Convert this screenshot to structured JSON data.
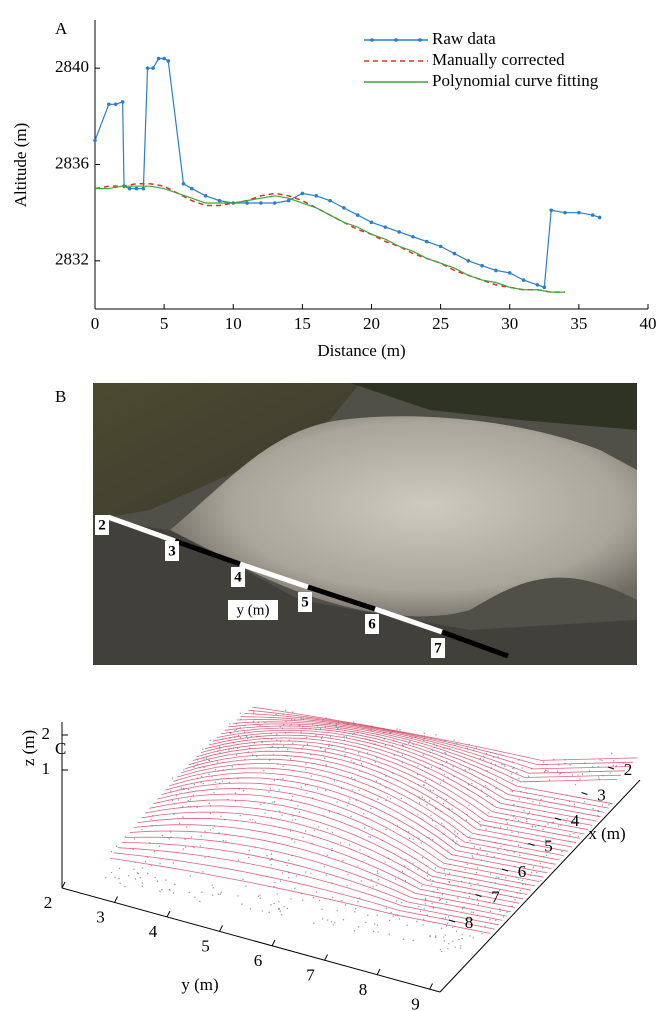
{
  "chart_data": {
    "type": "line",
    "panel_label": "A",
    "x_label": "Distance (m)",
    "y_label": "Altitude (m)",
    "xlim": [
      0,
      40
    ],
    "xticks": [
      0,
      5,
      10,
      15,
      20,
      25,
      30,
      35,
      40
    ],
    "ylim": [
      2830,
      2842
    ],
    "yticks": [
      2832,
      2836,
      2840
    ],
    "legend": "upper right",
    "series": [
      {
        "name": "Raw data",
        "color": "#2a7fc9",
        "line_style": "solid",
        "marker": "dot",
        "x": [
          0,
          1,
          1.5,
          2,
          2.1,
          2.5,
          3,
          3.5,
          3.8,
          4.2,
          4.6,
          5,
          5.3,
          6.4,
          7,
          8,
          9,
          10,
          11,
          12,
          13,
          14,
          15,
          16,
          17,
          18,
          19,
          20,
          21,
          22,
          23,
          24,
          25,
          26,
          27,
          28,
          29,
          30,
          31,
          32,
          32.5,
          33,
          34,
          35,
          36,
          36.5
        ],
        "values": [
          2837,
          2838.5,
          2838.5,
          2838.6,
          2835.1,
          2835.0,
          2835.0,
          2835.0,
          2840.0,
          2840.0,
          2840.4,
          2840.4,
          2840.3,
          2835.2,
          2835.0,
          2834.7,
          2834.5,
          2834.4,
          2834.4,
          2834.4,
          2834.4,
          2834.5,
          2834.8,
          2834.7,
          2834.5,
          2834.2,
          2833.9,
          2833.6,
          2833.4,
          2833.2,
          2833.0,
          2832.8,
          2832.6,
          2832.3,
          2832.0,
          2831.8,
          2831.6,
          2831.5,
          2831.2,
          2831.0,
          2830.9,
          2834.1,
          2834.0,
          2834.0,
          2833.9,
          2833.8
        ]
      },
      {
        "name": "Manually corrected",
        "color": "#e0301e",
        "line_style": "dashed",
        "marker": "none",
        "x": [
          0,
          1,
          2,
          3,
          4,
          5,
          6,
          7,
          8,
          9,
          10,
          11,
          12,
          13,
          14,
          15,
          16,
          17,
          18,
          19,
          20,
          21,
          22,
          23,
          24,
          25,
          26,
          27,
          28,
          29,
          30,
          31,
          32,
          33,
          34
        ],
        "values": [
          2835.0,
          2835.1,
          2835.1,
          2835.2,
          2835.2,
          2835.1,
          2834.8,
          2834.5,
          2834.3,
          2834.3,
          2834.4,
          2834.5,
          2834.7,
          2834.8,
          2834.7,
          2834.5,
          2834.2,
          2833.9,
          2833.6,
          2833.3,
          2833.1,
          2832.8,
          2832.6,
          2832.3,
          2832.1,
          2831.9,
          2831.6,
          2831.4,
          2831.2,
          2831.0,
          2830.9,
          2830.8,
          2830.8,
          2830.7,
          2830.7
        ]
      },
      {
        "name": "Polynomial curve fitting",
        "color": "#3aa63a",
        "line_style": "solid",
        "marker": "none",
        "x": [
          0,
          1,
          2,
          3,
          4,
          5,
          6,
          7,
          8,
          9,
          10,
          11,
          12,
          13,
          14,
          15,
          16,
          17,
          18,
          19,
          20,
          21,
          22,
          23,
          24,
          25,
          26,
          27,
          28,
          29,
          30,
          31,
          32,
          33,
          34
        ],
        "values": [
          2835.0,
          2835.0,
          2835.1,
          2835.1,
          2835.1,
          2835.0,
          2834.8,
          2834.6,
          2834.4,
          2834.4,
          2834.4,
          2834.5,
          2834.6,
          2834.7,
          2834.6,
          2834.4,
          2834.2,
          2833.9,
          2833.6,
          2833.4,
          2833.1,
          2832.9,
          2832.6,
          2832.4,
          2832.1,
          2831.9,
          2831.7,
          2831.4,
          2831.2,
          2831.1,
          2830.9,
          2830.8,
          2830.8,
          2830.7,
          2830.7
        ]
      }
    ]
  },
  "photo": {
    "panel_label": "B",
    "scale_labels": [
      "2",
      "3",
      "4",
      "5",
      "6",
      "7"
    ],
    "axis_label": "y (m)"
  },
  "surface_plot": {
    "panel_label": "C",
    "x_label": "x (m)",
    "y_label": "y (m)",
    "z_label": "z (m)",
    "xticks": [
      2,
      3,
      4,
      5,
      6,
      7,
      8
    ],
    "yticks": [
      2,
      3,
      4,
      5,
      6,
      7,
      8,
      9
    ],
    "zticks": [
      1,
      2
    ]
  }
}
